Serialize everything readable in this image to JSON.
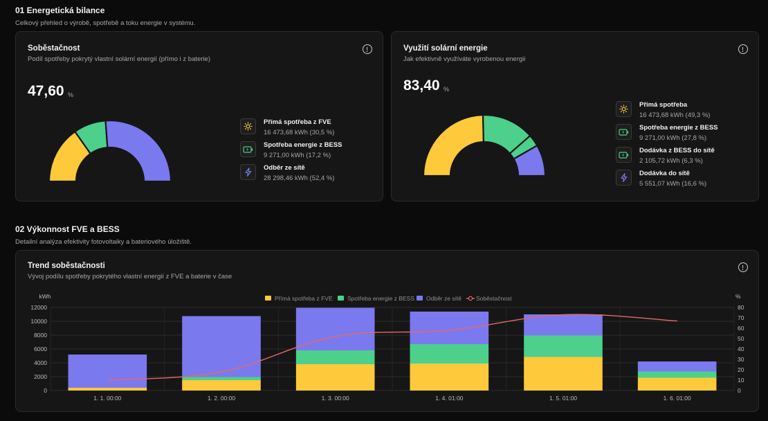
{
  "section1": {
    "title": "01 Energetická bilance",
    "subtitle": "Celkový přehled o výrobě, spotřebě a toku energie v systému."
  },
  "self_sufficiency": {
    "title": "Soběstačnost",
    "subtitle": "Podíl spotřeby pokrytý vlastní solární energií (přímo i z baterie)",
    "value": "47,60",
    "unit": "%",
    "items": [
      {
        "label": "Přímá spotřeba z FVE",
        "value": "16 473,68 kWh (30,5 %)",
        "share": 30.5,
        "icon": "sun-icon",
        "color": "#fec93a"
      },
      {
        "label": "Spotřeba energie z BESS",
        "value": "9 271,00 kWh (17,2 %)",
        "share": 17.2,
        "icon": "battery-icon",
        "color": "#4cd08c"
      },
      {
        "label": "Odběr ze sítě",
        "value": "28 298,46 kWh (52,4 %)",
        "share": 52.4,
        "icon": "lightning-icon",
        "color": "#7b79ee"
      }
    ]
  },
  "solar_usage": {
    "title": "Využití solární energie",
    "subtitle": "Jak efektivně využíváte vyrobenou energii",
    "value": "83,40",
    "unit": "%",
    "items": [
      {
        "label": "Přímá spotřeba",
        "value": "16 473,68 kWh (49,3 %)",
        "share": 49.3,
        "icon": "sun-icon",
        "color": "#fec93a"
      },
      {
        "label": "Spotřeba energie z BESS",
        "value": "9 271,00 kWh (27,8 %)",
        "share": 27.8,
        "icon": "battery-icon",
        "color": "#4cd08c"
      },
      {
        "label": "Dodávka z BESS do sítě",
        "value": "2 105,72 kWh (6,3 %)",
        "share": 6.3,
        "icon": "battery-icon",
        "color": "#4cd08c"
      },
      {
        "label": "Dodávka do sítě",
        "value": "5 551,07 kWh (16,6 %)",
        "share": 16.6,
        "icon": "lightning-icon",
        "color": "#7b79ee"
      }
    ]
  },
  "section2": {
    "title": "02 Výkonnost FVE a BESS",
    "subtitle": "Detailní analýza efektivity fotovoltaiky a bateriového úložiště."
  },
  "trend": {
    "title": "Trend soběstačnosti",
    "subtitle": "Vývoj podílu spotřeby pokrytého vlastní energií z FVE a baterie v čase"
  },
  "chart_data": {
    "type": "bar",
    "stacked": true,
    "categories": [
      "1. 1. 00:00",
      "1. 2. 00:00",
      "1. 3. 00:00",
      "1. 4. 01:00",
      "1. 5. 01:00",
      "1. 6. 01:00"
    ],
    "series": [
      {
        "name": "Přímá spotřeba z FVE",
        "color": "#fec93a",
        "axis": "left",
        "values": [
          400,
          1500,
          3800,
          3900,
          4850,
          1850
        ]
      },
      {
        "name": "Spotřeba energie z BESS",
        "color": "#4cd08c",
        "axis": "left",
        "values": [
          0,
          450,
          2000,
          2800,
          3100,
          900
        ]
      },
      {
        "name": "Odběr ze sítě",
        "color": "#7b79ee",
        "axis": "left",
        "values": [
          4800,
          8800,
          6150,
          4700,
          3050,
          1450
        ]
      },
      {
        "name": "Soběstačnost",
        "color": "#e26a6a",
        "axis": "right",
        "type": "line",
        "values": [
          10,
          18,
          52,
          58,
          73,
          67
        ]
      }
    ],
    "yleft": {
      "label": "kWh",
      "min": 0,
      "max": 12000,
      "ticks": [
        0,
        2000,
        4000,
        6000,
        8000,
        10000,
        12000
      ]
    },
    "yright": {
      "label": "%",
      "min": 0,
      "max": 80,
      "ticks": [
        0,
        10,
        20,
        30,
        40,
        50,
        60,
        70,
        80
      ]
    },
    "legend": "top-center",
    "grid": true
  }
}
